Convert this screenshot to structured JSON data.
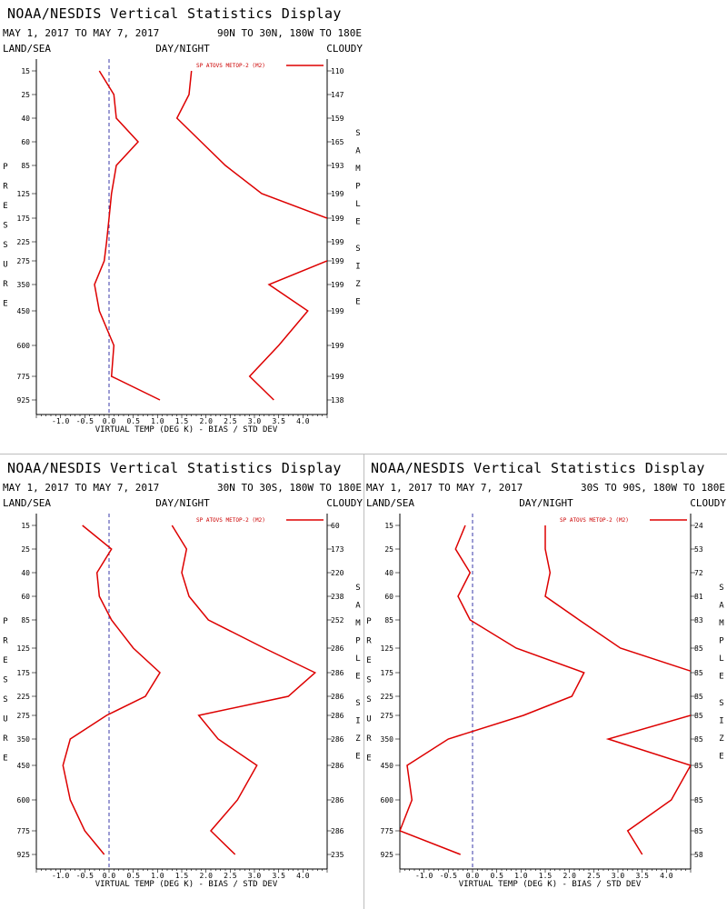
{
  "charts": [
    {
      "title": "NOAA/NESDIS Vertical Statistics Display",
      "date_range": "MAY 1, 2017 TO MAY 7, 2017",
      "region": "90N TO 30N, 180W TO 180E",
      "left_header": "LAND/SEA",
      "center_header": "DAY/NIGHT",
      "right_header": "CLOUDY",
      "legend": "SP ATOVS METOP-2 (M2)",
      "xlabel": "VIRTUAL TEMP (DEG K) - BIAS / STD DEV",
      "ylabel_left": "PRESSURE",
      "ylabel_right": "SAMPLE SIZE",
      "xticks": [
        "-1.0",
        "-0.5",
        "0.0",
        "0.5",
        "1.0",
        "1.5",
        "2.0",
        "2.5",
        "3.0",
        "3.5",
        "4.0"
      ],
      "pressure_levels": [
        "15",
        "25",
        "40",
        "60",
        "85",
        "125",
        "175",
        "225",
        "275",
        "350",
        "450",
        "600",
        "775",
        "925"
      ],
      "sample_sizes": [
        "110",
        "147",
        "159",
        "165",
        "193",
        "199",
        "199",
        "199",
        "199",
        "199",
        "199",
        "199",
        "199",
        "138"
      ]
    },
    {
      "title": "NOAA/NESDIS Vertical Statistics Display",
      "date_range": "MAY 1, 2017 TO MAY 7, 2017",
      "region": "30N TO 30S, 180W TO 180E",
      "left_header": "LAND/SEA",
      "center_header": "DAY/NIGHT",
      "right_header": "CLOUDY",
      "legend": "SP ATOVS METOP-2 (M2)",
      "xlabel": "VIRTUAL TEMP (DEG K) - BIAS / STD DEV",
      "ylabel_left": "PRESSURE",
      "ylabel_right": "SAMPLE SIZE",
      "xticks": [
        "-1.0",
        "-0.5",
        "0.0",
        "0.5",
        "1.0",
        "1.5",
        "2.0",
        "2.5",
        "3.0",
        "3.5",
        "4.0"
      ],
      "pressure_levels": [
        "15",
        "25",
        "40",
        "60",
        "85",
        "125",
        "175",
        "225",
        "275",
        "350",
        "450",
        "600",
        "775",
        "925"
      ],
      "sample_sizes": [
        "60",
        "173",
        "220",
        "238",
        "252",
        "286",
        "286",
        "286",
        "286",
        "286",
        "286",
        "286",
        "286",
        "235"
      ]
    },
    {
      "title": "NOAA/NESDIS Vertical Statistics Display",
      "date_range": "MAY 1, 2017 TO MAY 7, 2017",
      "region": "30S TO 90S, 180W TO 180E",
      "left_header": "LAND/SEA",
      "center_header": "DAY/NIGHT",
      "right_header": "CLOUDY",
      "legend": "SP ATOVS METOP-2 (M2)",
      "xlabel": "VIRTUAL TEMP (DEG K) - BIAS / STD DEV",
      "ylabel_left": "PRESSURE",
      "ylabel_right": "SAMPLE SIZE",
      "xticks": [
        "-1.0",
        "-0.5",
        "0.0",
        "0.5",
        "1.0",
        "1.5",
        "2.0",
        "2.5",
        "3.0",
        "3.5",
        "4.0"
      ],
      "pressure_levels": [
        "15",
        "25",
        "40",
        "60",
        "85",
        "125",
        "175",
        "225",
        "275",
        "350",
        "450",
        "600",
        "775",
        "925"
      ],
      "sample_sizes": [
        "24",
        "53",
        "72",
        "81",
        "83",
        "85",
        "85",
        "85",
        "85",
        "85",
        "85",
        "85",
        "85",
        "58"
      ]
    }
  ],
  "chart_data": [
    {
      "type": "line",
      "xlim": [
        -1.5,
        4.5
      ],
      "y_axis": "pressure levels (hPa), top to bottom",
      "color": "#dd0000",
      "series": [
        {
          "pressure": [
            15,
            25,
            40,
            60,
            85,
            125,
            175,
            225,
            275,
            350,
            450,
            600,
            775,
            925
          ],
          "x": [
            -0.2,
            0.1,
            0.15,
            0.6,
            0.15,
            0.05,
            0.0,
            -0.05,
            -0.1,
            -0.3,
            -0.2,
            0.1,
            0.05,
            1.05
          ]
        },
        {
          "pressure": [
            15,
            25,
            40,
            60,
            85,
            125,
            175,
            225,
            275,
            350,
            450,
            600,
            775,
            925
          ],
          "x": [
            1.7,
            1.65,
            1.4,
            1.9,
            2.4,
            3.15,
            4.5,
            5.2,
            4.5,
            3.3,
            4.1,
            3.5,
            2.9,
            3.4
          ]
        }
      ]
    },
    {
      "type": "line",
      "xlim": [
        -1.5,
        4.5
      ],
      "y_axis": "pressure levels (hPa), top to bottom",
      "color": "#dd0000",
      "series": [
        {
          "pressure": [
            15,
            25,
            40,
            60,
            85,
            125,
            175,
            225,
            275,
            350,
            450,
            600,
            775,
            925
          ],
          "x": [
            -0.55,
            0.05,
            -0.25,
            -0.2,
            0.05,
            0.5,
            1.05,
            0.75,
            -0.05,
            -0.8,
            -0.95,
            -0.8,
            -0.5,
            -0.1
          ]
        },
        {
          "pressure": [
            15,
            25,
            40,
            60,
            85,
            125,
            175,
            225,
            275,
            350,
            450,
            600,
            775,
            925
          ],
          "x": [
            1.3,
            1.6,
            1.5,
            1.65,
            2.05,
            3.2,
            4.25,
            3.7,
            1.85,
            2.25,
            3.05,
            2.65,
            2.1,
            2.6
          ]
        }
      ]
    },
    {
      "type": "line",
      "xlim": [
        -1.5,
        4.5
      ],
      "y_axis": "pressure levels (hPa), top to bottom",
      "color": "#dd0000",
      "series": [
        {
          "pressure": [
            15,
            25,
            40,
            60,
            85,
            125,
            175,
            225,
            275,
            350,
            450,
            600,
            775,
            925
          ],
          "x": [
            -0.15,
            -0.35,
            -0.05,
            -0.3,
            -0.05,
            0.9,
            2.3,
            2.05,
            1.05,
            -0.5,
            -1.35,
            -1.25,
            -1.5,
            -0.25
          ]
        },
        {
          "pressure": [
            15,
            25,
            40,
            60,
            85,
            125,
            175,
            225,
            275,
            350,
            450,
            600,
            775,
            925
          ],
          "x": [
            1.5,
            1.5,
            1.6,
            1.5,
            2.2,
            3.05,
            4.6,
            5.2,
            4.5,
            2.8,
            4.5,
            4.1,
            3.2,
            3.5
          ]
        }
      ]
    }
  ]
}
